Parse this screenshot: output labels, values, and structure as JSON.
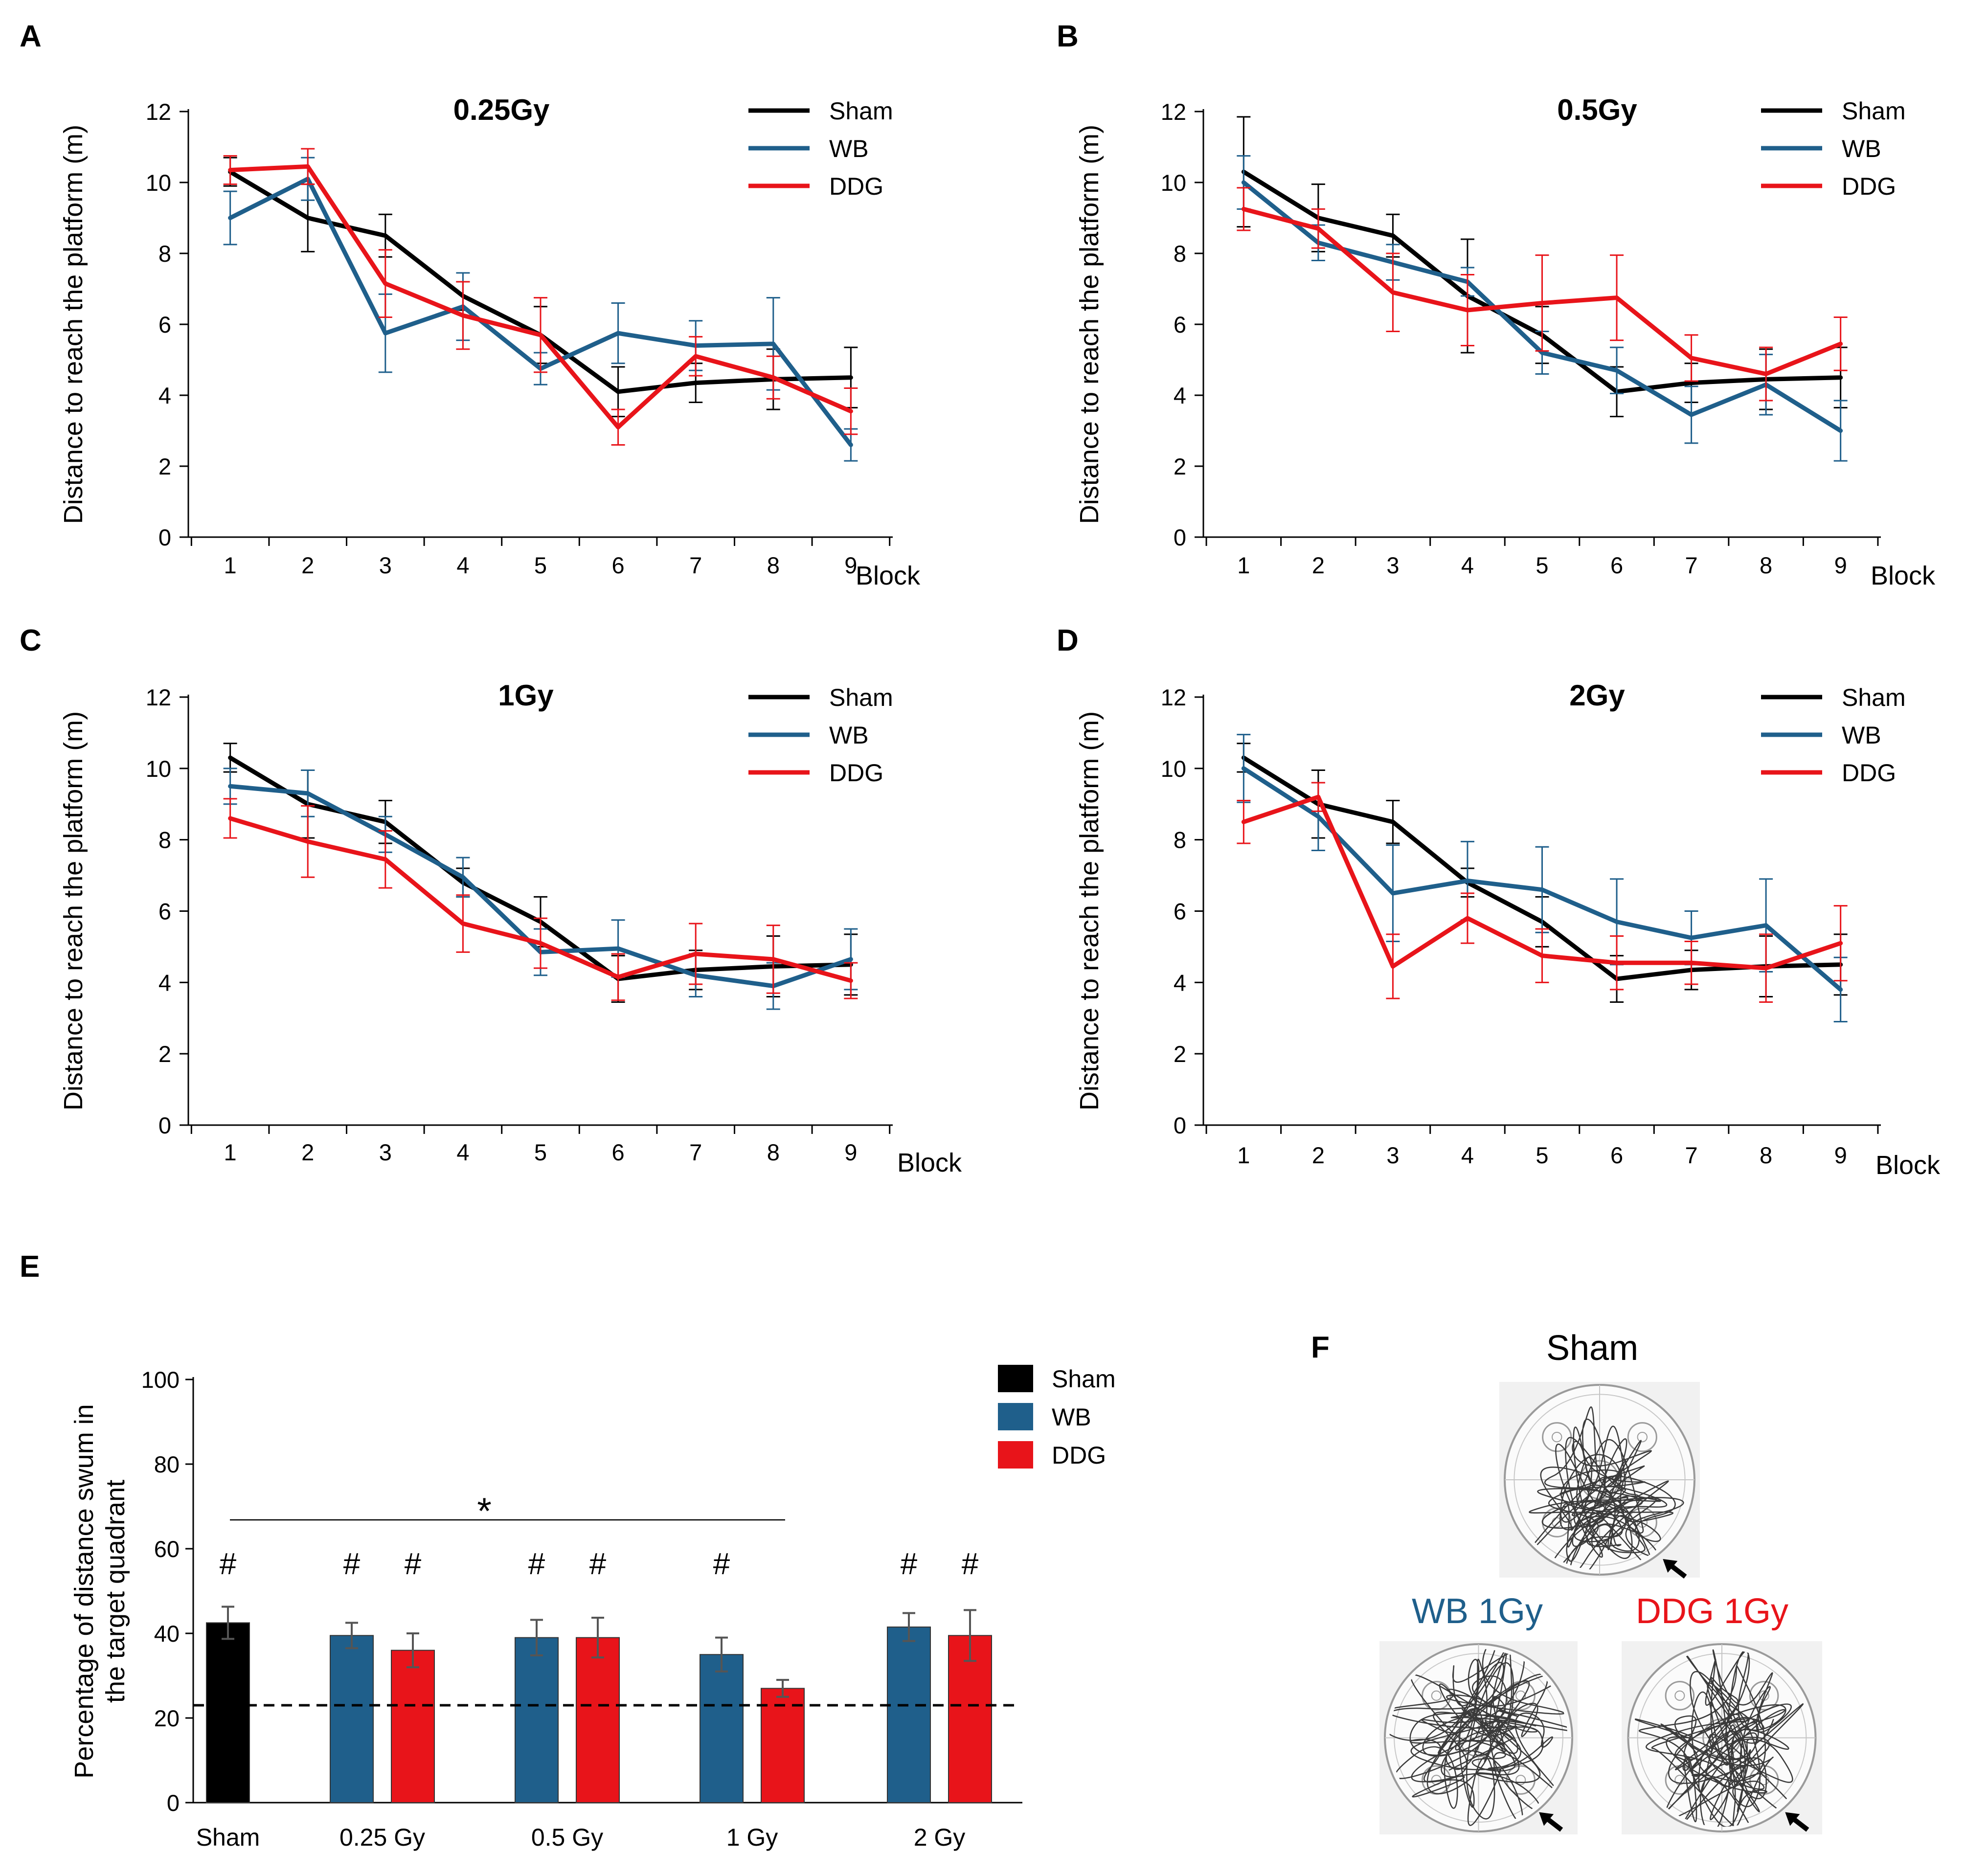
{
  "colors": {
    "sham": "#000000",
    "wb": "#1f5f8b",
    "ddg": "#e8141a"
  },
  "chart_data": [
    {
      "type": "line",
      "panel": "A",
      "title": "0.25Gy",
      "xlabel": "Block",
      "ylabel": "Distance to reach the platform (m)",
      "x": [
        1,
        2,
        3,
        4,
        5,
        6,
        7,
        8,
        9
      ],
      "y_ticks": [
        0,
        2,
        4,
        6,
        8,
        10,
        12
      ],
      "ylim": [
        0,
        12
      ],
      "series": [
        {
          "name": "Sham",
          "color_key": "sham",
          "values": [
            10.3,
            9.0,
            8.5,
            6.8,
            5.7,
            4.1,
            4.35,
            4.45,
            4.5
          ],
          "errors": [
            0.4,
            0.95,
            0.6,
            0.4,
            0.8,
            0.7,
            0.55,
            0.85,
            0.85
          ]
        },
        {
          "name": "WB",
          "color_key": "wb",
          "values": [
            9.0,
            10.1,
            5.75,
            6.5,
            4.75,
            5.75,
            5.4,
            5.45,
            2.6
          ],
          "errors": [
            0.75,
            0.6,
            1.1,
            0.95,
            0.45,
            0.85,
            0.7,
            1.3,
            0.45
          ]
        },
        {
          "name": "DDG",
          "color_key": "ddg",
          "values": [
            10.35,
            10.45,
            7.15,
            6.25,
            5.7,
            3.1,
            5.1,
            4.5,
            3.55
          ],
          "errors": [
            0.4,
            0.5,
            0.95,
            0.95,
            1.05,
            0.5,
            0.55,
            0.6,
            0.65
          ]
        }
      ]
    },
    {
      "type": "line",
      "panel": "B",
      "title": "0.5Gy",
      "xlabel": "Block",
      "ylabel": "Distance to reach the platform (m)",
      "x": [
        1,
        2,
        3,
        4,
        5,
        6,
        7,
        8,
        9
      ],
      "y_ticks": [
        0,
        2,
        4,
        6,
        8,
        10,
        12
      ],
      "ylim": [
        0,
        12
      ],
      "series": [
        {
          "name": "Sham",
          "color_key": "sham",
          "values": [
            10.3,
            9.0,
            8.5,
            6.8,
            5.7,
            4.1,
            4.35,
            4.45,
            4.5
          ],
          "errors": [
            1.55,
            0.95,
            0.6,
            1.6,
            0.8,
            0.7,
            0.55,
            0.85,
            0.85
          ]
        },
        {
          "name": "WB",
          "color_key": "wb",
          "values": [
            10.0,
            8.3,
            7.75,
            7.2,
            5.2,
            4.7,
            3.45,
            4.3,
            3.0
          ],
          "errors": [
            0.75,
            0.5,
            0.5,
            0.4,
            0.6,
            0.65,
            0.8,
            0.85,
            0.85
          ]
        },
        {
          "name": "DDG",
          "color_key": "ddg",
          "values": [
            9.25,
            8.7,
            6.9,
            6.4,
            6.6,
            6.75,
            5.05,
            4.6,
            5.45
          ],
          "errors": [
            0.6,
            0.55,
            1.1,
            1.0,
            1.35,
            1.2,
            0.65,
            0.75,
            0.75
          ]
        }
      ]
    },
    {
      "type": "line",
      "panel": "C",
      "title": "1Gy",
      "xlabel": "Block",
      "ylabel": "Distance to reach the platform (m)",
      "x": [
        1,
        2,
        3,
        4,
        5,
        6,
        7,
        8,
        9
      ],
      "y_ticks": [
        0,
        2,
        4,
        6,
        8,
        10,
        12
      ],
      "ylim": [
        0,
        12
      ],
      "series": [
        {
          "name": "Sham",
          "color_key": "sham",
          "values": [
            10.3,
            9.0,
            8.5,
            6.8,
            5.7,
            4.1,
            4.35,
            4.45,
            4.5
          ],
          "errors": [
            0.4,
            0.95,
            0.6,
            0.4,
            0.7,
            0.65,
            0.55,
            0.85,
            0.85
          ]
        },
        {
          "name": "WB",
          "color_key": "wb",
          "values": [
            9.5,
            9.3,
            8.15,
            6.95,
            4.85,
            4.95,
            4.2,
            3.9,
            4.65
          ],
          "errors": [
            0.5,
            0.65,
            0.5,
            0.55,
            0.65,
            0.8,
            0.6,
            0.65,
            0.85
          ]
        },
        {
          "name": "DDG",
          "color_key": "ddg",
          "values": [
            8.6,
            7.95,
            7.45,
            5.65,
            5.1,
            4.15,
            4.8,
            4.65,
            4.05
          ],
          "errors": [
            0.55,
            1.0,
            0.8,
            0.8,
            0.7,
            0.65,
            0.85,
            0.95,
            0.5
          ]
        }
      ]
    },
    {
      "type": "line",
      "panel": "D",
      "title": "2Gy",
      "xlabel": "Block",
      "ylabel": "Distance to reach the platform (m)",
      "x": [
        1,
        2,
        3,
        4,
        5,
        6,
        7,
        8,
        9
      ],
      "y_ticks": [
        0,
        2,
        4,
        6,
        8,
        10,
        12
      ],
      "ylim": [
        0,
        12
      ],
      "series": [
        {
          "name": "Sham",
          "color_key": "sham",
          "values": [
            10.3,
            9.0,
            8.5,
            6.8,
            5.7,
            4.1,
            4.35,
            4.45,
            4.5
          ],
          "errors": [
            0.4,
            0.95,
            0.6,
            0.4,
            0.7,
            0.65,
            0.55,
            0.85,
            0.85
          ]
        },
        {
          "name": "WB",
          "color_key": "wb",
          "values": [
            10.0,
            8.65,
            6.5,
            6.85,
            6.6,
            5.7,
            5.25,
            5.6,
            3.8
          ],
          "errors": [
            0.95,
            0.95,
            1.35,
            1.1,
            1.2,
            1.2,
            0.75,
            1.3,
            0.9
          ]
        },
        {
          "name": "DDG",
          "color_key": "ddg",
          "values": [
            8.5,
            9.2,
            4.45,
            5.8,
            4.75,
            4.55,
            4.55,
            4.4,
            5.1
          ],
          "errors": [
            0.6,
            0.4,
            0.9,
            0.7,
            0.75,
            0.75,
            0.6,
            0.95,
            1.05
          ]
        }
      ]
    },
    {
      "type": "bar",
      "panel": "E",
      "ylabel": "Percentage of distance swum in the target quadrant",
      "categories": [
        "Sham",
        "0.25 Gy",
        "0.5 Gy",
        "1 Gy",
        "2 Gy"
      ],
      "y_ticks": [
        0,
        20,
        40,
        60,
        80,
        100
      ],
      "ylim": [
        0,
        100
      ],
      "chance_level": 23,
      "significance_marker": "#",
      "comparison_marker": "*",
      "comparison_span": [
        "Sham",
        "1 Gy DDG"
      ],
      "bars": [
        {
          "group": "Sham",
          "name": "Sham",
          "color_key": "sham",
          "value": 42.5,
          "error": 3.8,
          "marked": true
        },
        {
          "group": "0.25 Gy",
          "name": "WB",
          "color_key": "wb",
          "value": 39.5,
          "error": 3.0,
          "marked": true
        },
        {
          "group": "0.25 Gy",
          "name": "DDG",
          "color_key": "ddg",
          "value": 36.0,
          "error": 4.0,
          "marked": true
        },
        {
          "group": "0.5 Gy",
          "name": "WB",
          "color_key": "wb",
          "value": 39.0,
          "error": 4.2,
          "marked": true
        },
        {
          "group": "0.5 Gy",
          "name": "DDG",
          "color_key": "ddg",
          "value": 39.0,
          "error": 4.7,
          "marked": true
        },
        {
          "group": "1 Gy",
          "name": "WB",
          "color_key": "wb",
          "value": 35.0,
          "error": 4.0,
          "marked": true
        },
        {
          "group": "1 Gy",
          "name": "DDG",
          "color_key": "ddg",
          "value": 27.0,
          "error": 2.0,
          "marked": false
        },
        {
          "group": "2 Gy",
          "name": "WB",
          "color_key": "wb",
          "value": 41.5,
          "error": 3.3,
          "marked": true
        },
        {
          "group": "2 Gy",
          "name": "DDG",
          "color_key": "ddg",
          "value": 39.5,
          "error": 6.0,
          "marked": true
        }
      ],
      "legend": [
        "Sham",
        "WB",
        "DDG"
      ]
    }
  ],
  "panel_f": {
    "letter": "F",
    "tracks": [
      {
        "label": "Sham",
        "color_key": "sham"
      },
      {
        "label": "WB 1Gy",
        "color_key": "wb"
      },
      {
        "label": "DDG 1Gy",
        "color_key": "ddg"
      }
    ]
  }
}
